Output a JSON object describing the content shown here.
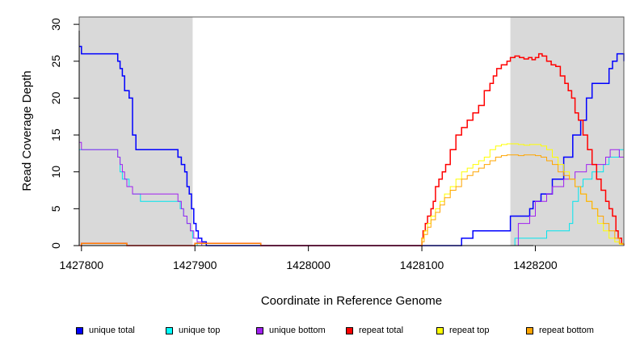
{
  "chart_data": {
    "type": "line",
    "title": "",
    "xlabel": "Coordinate in Reference Genome",
    "ylabel": "Read Coverage Depth",
    "xlim": [
      1427798,
      1428278
    ],
    "ylim": [
      0,
      31
    ],
    "x_ticks": [
      "1427800",
      "1427900",
      "1428000",
      "1428100",
      "1428200"
    ],
    "y_ticks": [
      "0",
      "5",
      "10",
      "15",
      "20",
      "25",
      "30"
    ],
    "shaded_regions": [
      [
        1427798,
        1427898
      ],
      [
        1428178,
        1428278
      ]
    ],
    "grid": false,
    "legend_position": "bottom",
    "series": [
      {
        "name": "unique total",
        "color": "#0000ff",
        "width": 1.5,
        "x": [
          1427798,
          1427800,
          1427830,
          1427832,
          1427834,
          1427836,
          1427838,
          1427842,
          1427845,
          1427848,
          1427875,
          1427885,
          1427888,
          1427891,
          1427893,
          1427895,
          1427897,
          1427899,
          1427901,
          1427903,
          1427906,
          1427910,
          1427914,
          1428120,
          1428135,
          1428140,
          1428145,
          1428178,
          1428195,
          1428198,
          1428205,
          1428215,
          1428225,
          1428233,
          1428240,
          1428245,
          1428250,
          1428265,
          1428268,
          1428272,
          1428274,
          1428278
        ],
        "y": [
          27,
          26,
          26,
          25,
          24,
          23,
          21,
          20,
          15,
          13,
          13,
          12,
          11,
          10,
          8,
          7,
          5,
          3,
          2,
          1,
          0.5,
          0,
          0,
          0,
          1,
          1,
          2,
          4,
          5,
          6,
          7,
          9,
          12,
          15,
          17,
          20,
          22,
          24,
          25,
          26,
          26,
          25
        ]
      },
      {
        "name": "unique top",
        "color": "#00e5ee",
        "width": 1,
        "x": [
          1427798,
          1427830,
          1427832,
          1427834,
          1427836,
          1427840,
          1427842,
          1427845,
          1427848,
          1427852,
          1427885,
          1427887,
          1427890,
          1427893,
          1427896,
          1427898,
          1427902,
          1428180,
          1428182,
          1428200,
          1428210,
          1428230,
          1428233,
          1428238,
          1428242,
          1428250,
          1428255,
          1428260,
          1428265,
          1428270,
          1428274,
          1428278
        ],
        "y": [
          13,
          13,
          12,
          10,
          9,
          9,
          8,
          7,
          7,
          6,
          6,
          5,
          4,
          3,
          2,
          1,
          0,
          0,
          1,
          1,
          2,
          3,
          6,
          8,
          9,
          10,
          10,
          11,
          12,
          12,
          13,
          13
        ]
      },
      {
        "name": "unique bottom",
        "color": "#a020f0",
        "width": 1,
        "x": [
          1427798,
          1427800,
          1427830,
          1427832,
          1427834,
          1427836,
          1427838,
          1427840,
          1427842,
          1427845,
          1427848,
          1427880,
          1427885,
          1427888,
          1427890,
          1427893,
          1427896,
          1427899,
          1427902,
          1427906,
          1428178,
          1428185,
          1428195,
          1428200,
          1428210,
          1428215,
          1428225,
          1428235,
          1428245,
          1428260,
          1428262,
          1428266,
          1428270,
          1428274,
          1428278
        ],
        "y": [
          14,
          13,
          13,
          12,
          11,
          10,
          9,
          8,
          8,
          7,
          7,
          7,
          6,
          5,
          4,
          3,
          2,
          1,
          0.5,
          0,
          0,
          3,
          4,
          6,
          7,
          8,
          9,
          10,
          11,
          11,
          12,
          13,
          13,
          12,
          11
        ]
      },
      {
        "name": "repeat total",
        "color": "#ff0000",
        "width": 1.5,
        "x": [
          1427798,
          1427800,
          1427838,
          1427840,
          1427900,
          1427956,
          1427958,
          1428098,
          1428100,
          1428101,
          1428103,
          1428105,
          1428108,
          1428110,
          1428112,
          1428115,
          1428118,
          1428121,
          1428125,
          1428130,
          1428135,
          1428140,
          1428145,
          1428150,
          1428155,
          1428160,
          1428163,
          1428166,
          1428170,
          1428175,
          1428178,
          1428182,
          1428186,
          1428190,
          1428194,
          1428197,
          1428200,
          1428203,
          1428206,
          1428210,
          1428214,
          1428218,
          1428222,
          1428226,
          1428229,
          1428232,
          1428235,
          1428238,
          1428242,
          1428246,
          1428250,
          1428254,
          1428258,
          1428262,
          1428265,
          1428268,
          1428271,
          1428273,
          1428276,
          1428278
        ],
        "y": [
          0,
          0.3,
          0.3,
          0,
          0.3,
          0.3,
          0,
          0,
          1,
          2,
          3,
          4,
          5,
          6,
          8,
          9,
          10,
          11,
          13,
          15,
          16,
          17,
          18,
          19,
          21,
          22,
          23,
          24,
          24.5,
          25,
          25.5,
          25.7,
          25.5,
          25.3,
          25.5,
          25.2,
          25.5,
          26,
          25.7,
          25,
          24.5,
          24.3,
          23,
          22,
          21,
          20,
          18,
          17,
          15,
          13,
          11,
          9,
          7.5,
          6,
          5,
          4,
          2,
          1,
          0.2,
          0
        ]
      },
      {
        "name": "repeat top",
        "color": "#ffff00",
        "width": 1,
        "x": [
          1428098,
          1428100,
          1428102,
          1428105,
          1428108,
          1428112,
          1428116,
          1428120,
          1428125,
          1428130,
          1428135,
          1428140,
          1428145,
          1428150,
          1428155,
          1428160,
          1428165,
          1428170,
          1428175,
          1428180,
          1428185,
          1428190,
          1428195,
          1428200,
          1428205,
          1428210,
          1428215,
          1428220,
          1428225,
          1428230,
          1428235,
          1428240,
          1428245,
          1428250,
          1428255,
          1428260,
          1428265,
          1428270,
          1428274,
          1428278
        ],
        "y": [
          0,
          1,
          2,
          3,
          4,
          5,
          6,
          7,
          8,
          9,
          10,
          10.5,
          11,
          11.5,
          12,
          13,
          13.5,
          13.7,
          13.8,
          13.8,
          13.7,
          13.6,
          13.7,
          13.7,
          13.5,
          13,
          12,
          11,
          10,
          9,
          8,
          7,
          6,
          5,
          3,
          2,
          1,
          0.5,
          0.2,
          0
        ]
      },
      {
        "name": "repeat bottom",
        "color": "#ffa500",
        "width": 1,
        "x": [
          1427798,
          1427800,
          1427838,
          1427840,
          1427900,
          1427956,
          1427958,
          1428098,
          1428100,
          1428102,
          1428105,
          1428108,
          1428112,
          1428116,
          1428120,
          1428125,
          1428130,
          1428135,
          1428140,
          1428145,
          1428150,
          1428155,
          1428160,
          1428165,
          1428170,
          1428175,
          1428180,
          1428185,
          1428190,
          1428195,
          1428200,
          1428205,
          1428210,
          1428215,
          1428220,
          1428225,
          1428230,
          1428235,
          1428240,
          1428245,
          1428250,
          1428255,
          1428260,
          1428265,
          1428270,
          1428274,
          1428278
        ],
        "y": [
          0,
          0.3,
          0.3,
          0,
          0.3,
          0.3,
          0,
          0,
          0.5,
          1.5,
          2.5,
          3.5,
          4.5,
          5.5,
          6.5,
          7.5,
          8,
          9,
          9.5,
          10,
          10.5,
          11,
          11.5,
          12,
          12.2,
          12.3,
          12.3,
          12.2,
          12.3,
          12.3,
          12.2,
          12,
          11.5,
          11,
          10,
          9.5,
          9,
          8,
          7,
          6,
          5,
          4,
          3,
          2,
          1,
          0.3,
          0
        ]
      }
    ]
  },
  "legend": [
    {
      "label": "unique total",
      "color": "#0000ff"
    },
    {
      "label": "unique top",
      "color": "#00ffff"
    },
    {
      "label": "unique bottom",
      "color": "#a020f0"
    },
    {
      "label": "repeat total",
      "color": "#ff0000"
    },
    {
      "label": "repeat top",
      "color": "#ffff00"
    },
    {
      "label": "repeat bottom",
      "color": "#ffa500"
    }
  ]
}
